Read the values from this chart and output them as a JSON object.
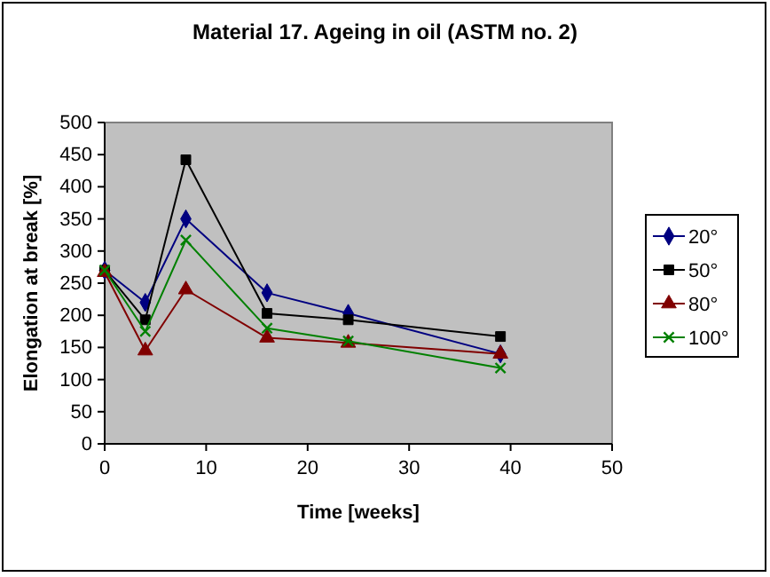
{
  "chart_data": {
    "type": "line",
    "title": "Material 17. Ageing in oil (ASTM no. 2)",
    "xlabel": "Time [weeks]",
    "ylabel": "Elongation at break [%]",
    "x": [
      0,
      4,
      8,
      16,
      24,
      39
    ],
    "series": [
      {
        "name": "20°",
        "color": "#000080",
        "marker": "diamond",
        "values": [
          270,
          220,
          350,
          235,
          203,
          140
        ]
      },
      {
        "name": "50°",
        "color": "#000000",
        "marker": "square",
        "values": [
          270,
          193,
          442,
          203,
          193,
          167
        ]
      },
      {
        "name": "80°",
        "color": "#800000",
        "marker": "triangle",
        "values": [
          267,
          145,
          240,
          165,
          157,
          140
        ]
      },
      {
        "name": "100°",
        "color": "#008000",
        "marker": "cross",
        "values": [
          270,
          175,
          317,
          180,
          160,
          118
        ]
      }
    ],
    "xlim": [
      0,
      50
    ],
    "xticks": [
      0,
      10,
      20,
      30,
      40,
      50
    ],
    "ylim": [
      0,
      500
    ],
    "yticks": [
      0,
      50,
      100,
      150,
      200,
      250,
      300,
      350,
      400,
      450,
      500
    ],
    "grid": false,
    "legend": "right",
    "line_style": "solid"
  }
}
